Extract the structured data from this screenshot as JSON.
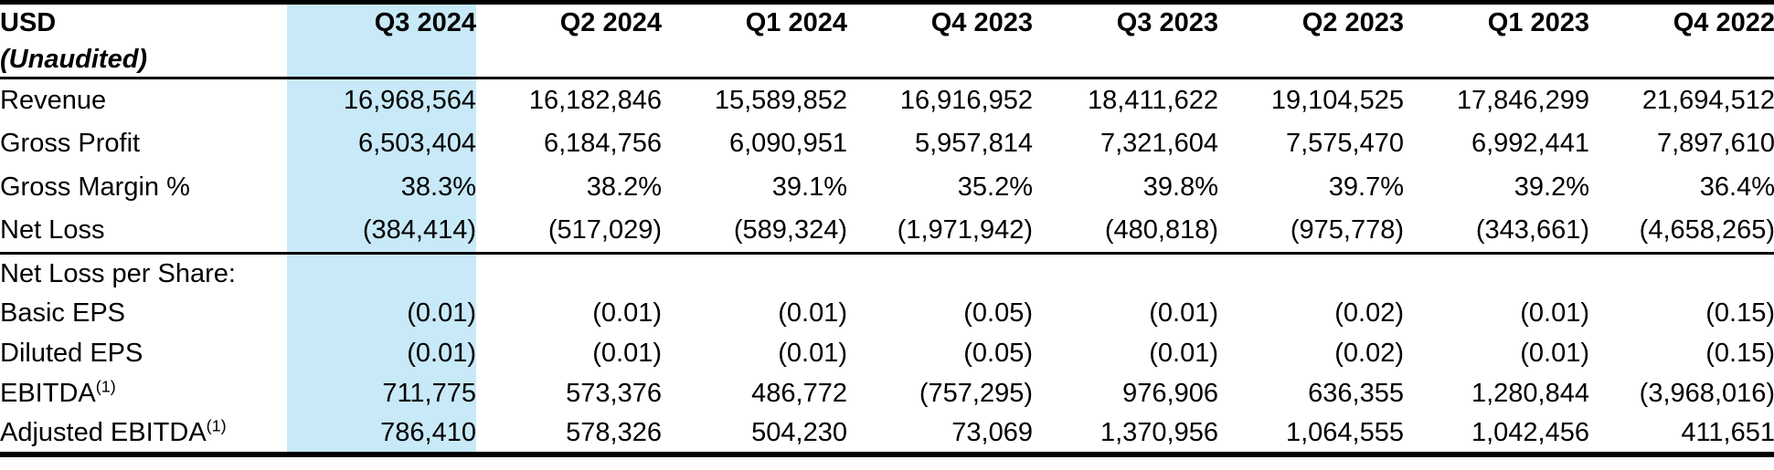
{
  "table": {
    "title": "USD",
    "subtitle": "(Unaudited)",
    "highlighted_column": "Q3 2024",
    "highlight_color": "#c8e9f7",
    "columns": [
      "Q3 2024",
      "Q2 2024",
      "Q1 2024",
      "Q4 2023",
      "Q3 2023",
      "Q2 2023",
      "Q1 2023",
      "Q4 2022"
    ],
    "rows": [
      {
        "label": "Revenue",
        "values": [
          "16,968,564",
          "16,182,846",
          "15,589,852",
          "16,916,952",
          "18,411,622",
          "19,104,525",
          "17,846,299",
          "21,694,512"
        ]
      },
      {
        "label": "Gross Profit",
        "values": [
          "6,503,404",
          "6,184,756",
          "6,090,951",
          "5,957,814",
          "7,321,604",
          "7,575,470",
          "6,992,441",
          "7,897,610"
        ]
      },
      {
        "label": "Gross Margin %",
        "values": [
          "38.3%",
          "38.2%",
          "39.1%",
          "35.2%",
          "39.8%",
          "39.7%",
          "39.2%",
          "36.4%"
        ]
      },
      {
        "label": "Net Loss",
        "values": [
          "(384,414)",
          "(517,029)",
          "(589,324)",
          "(1,971,942)",
          "(480,818)",
          "(975,778)",
          "(343,661)",
          "(4,658,265)"
        ]
      },
      {
        "label": "Net Loss per Share:",
        "values": [
          "",
          "",
          "",
          "",
          "",
          "",
          "",
          ""
        ]
      },
      {
        "label": "Basic EPS",
        "values": [
          "(0.01)",
          "(0.01)",
          "(0.01)",
          "(0.05)",
          "(0.01)",
          "(0.02)",
          "(0.01)",
          "(0.15)"
        ]
      },
      {
        "label": "Diluted EPS",
        "values": [
          "(0.01)",
          "(0.01)",
          "(0.01)",
          "(0.05)",
          "(0.01)",
          "(0.02)",
          "(0.01)",
          "(0.15)"
        ]
      },
      {
        "label": "EBITDA",
        "sup": "(1)",
        "values": [
          "711,775",
          "573,376",
          "486,772",
          "(757,295)",
          "976,906",
          "636,355",
          "1,280,844",
          "(3,968,016)"
        ]
      },
      {
        "label": "Adjusted EBITDA",
        "sup": "(1)",
        "values": [
          "786,410",
          "578,326",
          "504,230",
          "73,069",
          "1,370,956",
          "1,064,555",
          "1,042,456",
          "411,651"
        ]
      }
    ]
  }
}
